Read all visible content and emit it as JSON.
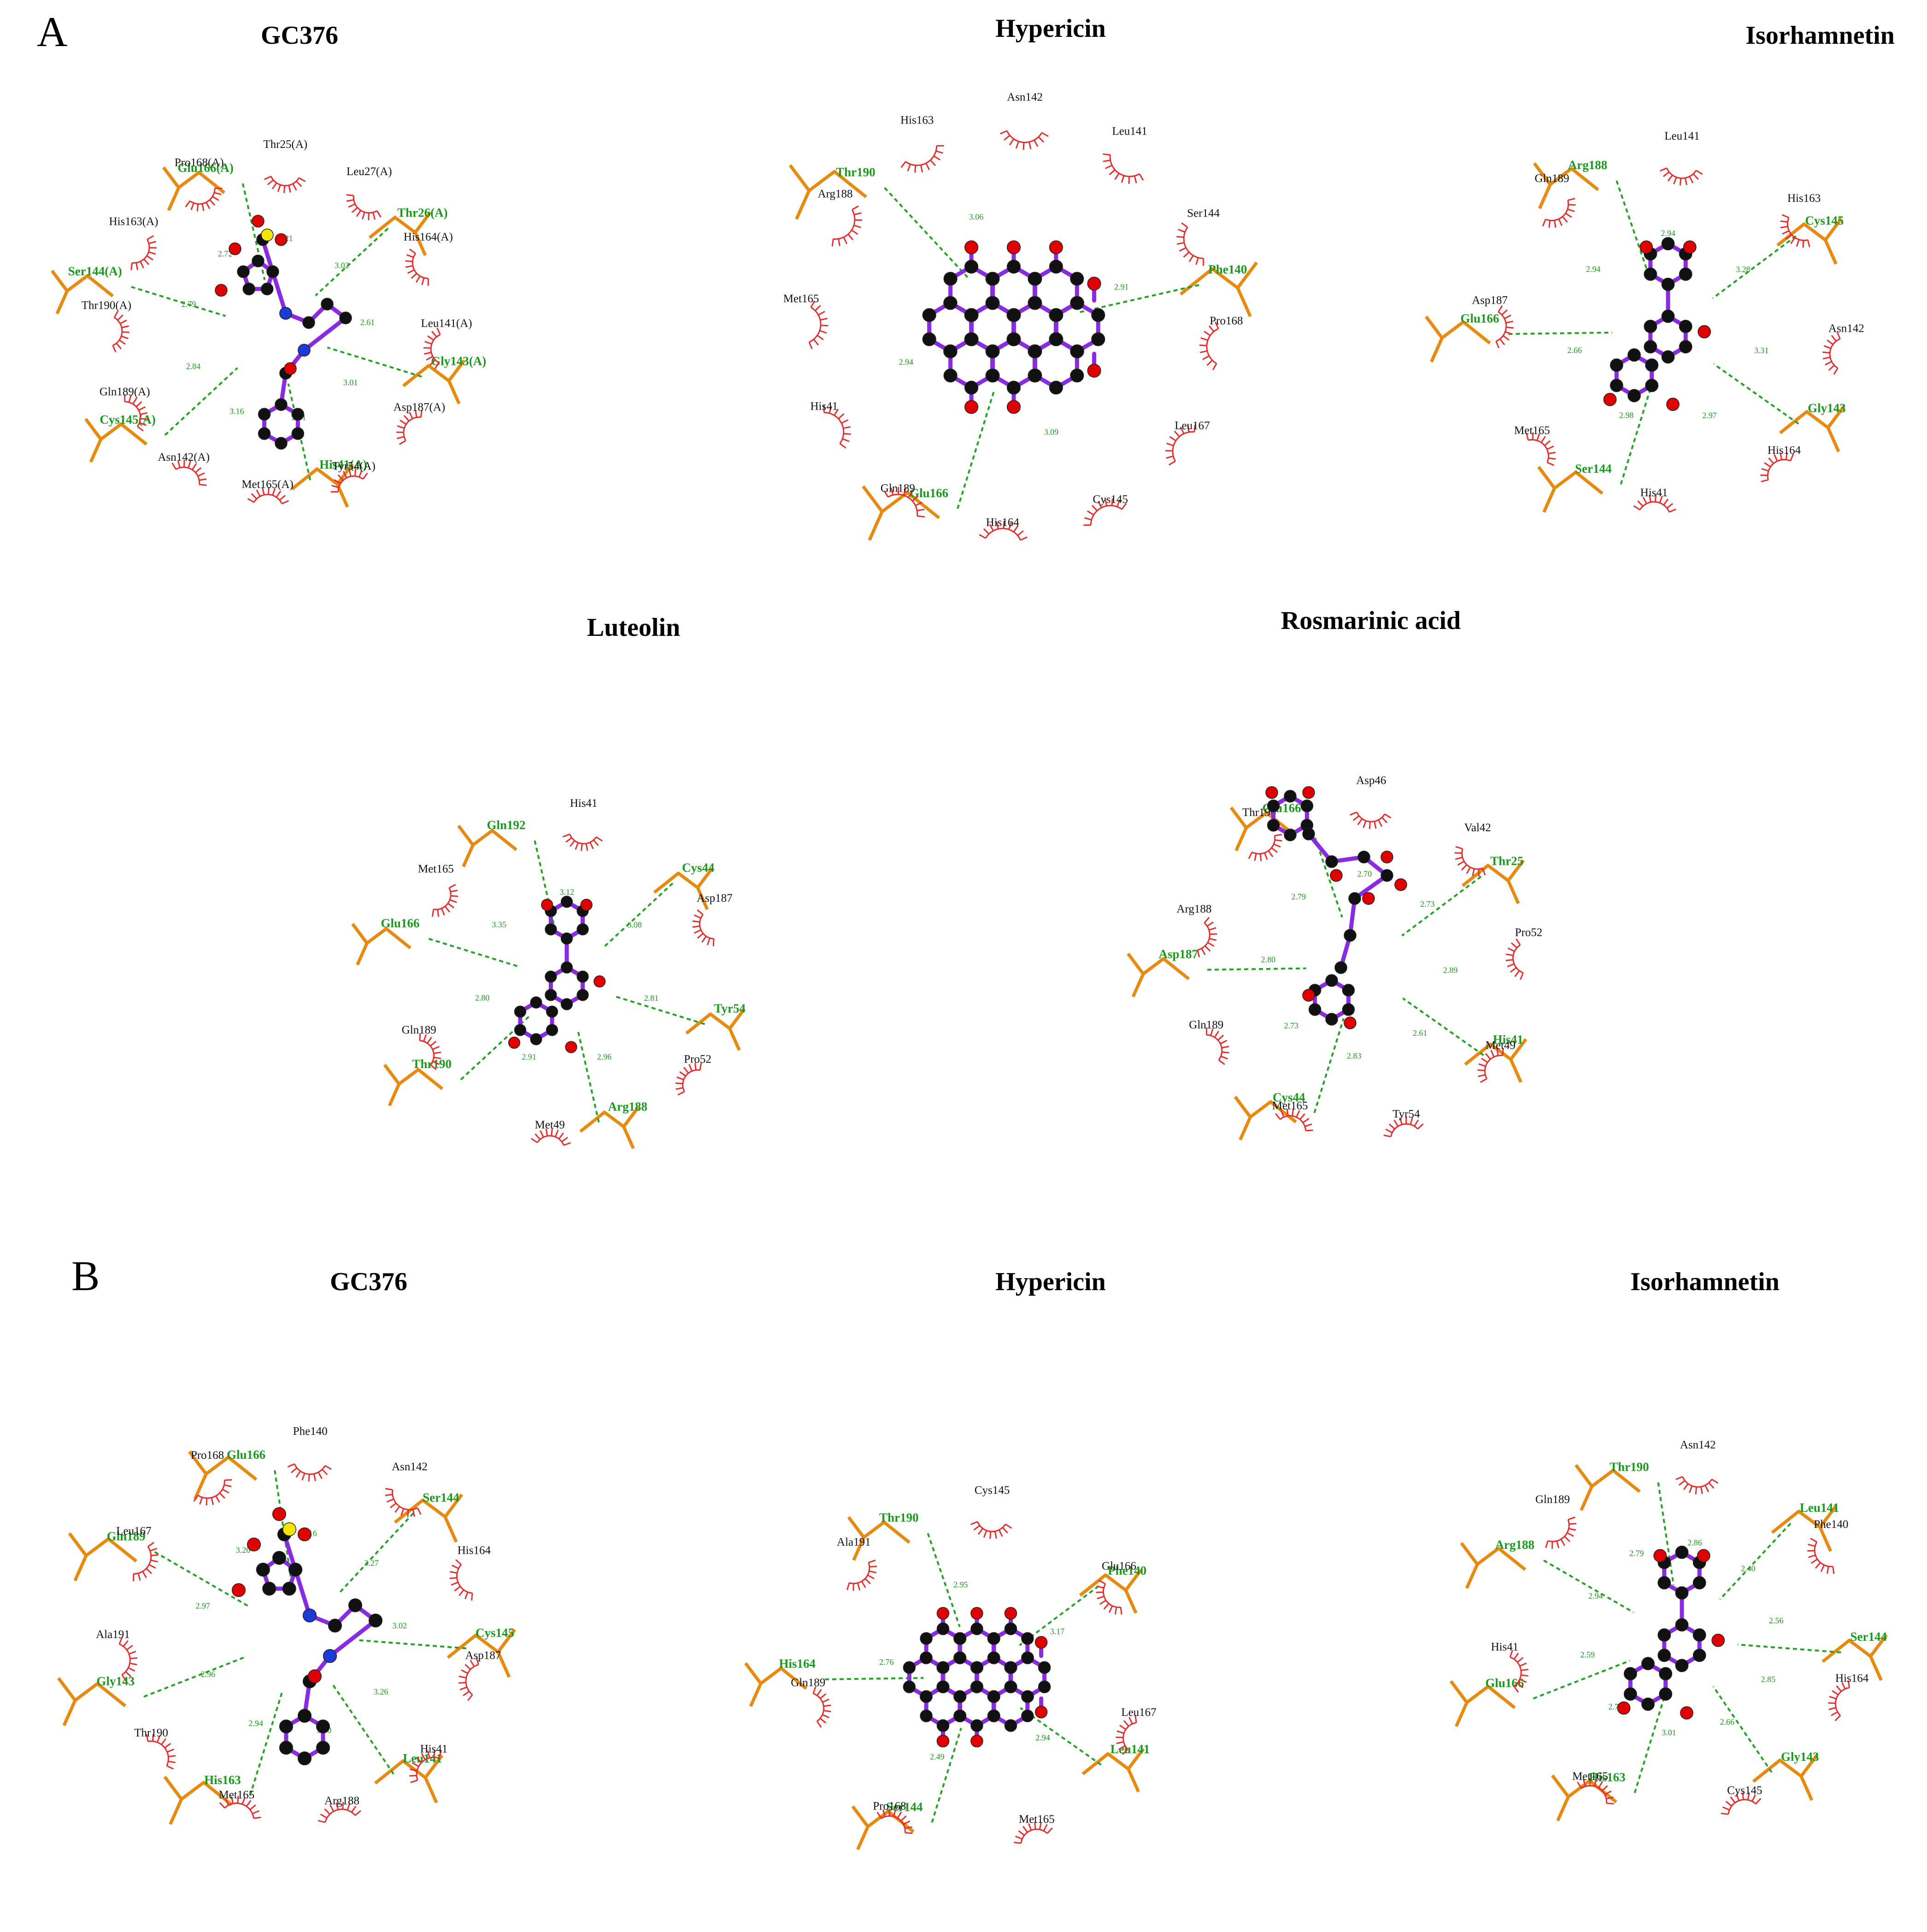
{
  "sections": [
    "A",
    "B"
  ],
  "panels": [
    {
      "title": "GC376",
      "green": [
        "Thr26(A)",
        "Gly143(A)",
        "His41(A)",
        "Cys145(A)",
        "Ser144(A)",
        "Glu166(A)"
      ],
      "black": [
        "Thr25(A)",
        "Leu27(A)",
        "His164(A)",
        "Leu141(A)",
        "Asp187(A)",
        "Tyr54(A)",
        "Met165(A)",
        "Asn142(A)",
        "Gln189(A)",
        "Thr190(A)",
        "His163(A)",
        "Pro168(A)"
      ],
      "dists": [
        "3.02",
        "2.61",
        "3.01",
        "2.81",
        "3.16",
        "2.84",
        "2.79",
        "2.72",
        "3.21"
      ]
    },
    {
      "title": "Hypericin",
      "green": [
        "Phe140",
        "Glu166",
        "Thr190"
      ],
      "black": [
        "Asn142",
        "Leu141",
        "Ser144",
        "Pro168",
        "Leu167",
        "Cys145",
        "His164",
        "Gln189",
        "His41",
        "Met165",
        "Arg188",
        "His163"
      ],
      "dists": [
        "2.91",
        "3.09",
        "2.94",
        "3.06"
      ]
    },
    {
      "title": "Isorhamnetin",
      "green": [
        "Cys145",
        "Gly143",
        "Ser144",
        "Glu166",
        "Arg188"
      ],
      "black": [
        "Leu141",
        "His163",
        "Asn142",
        "His164",
        "His41",
        "Met165",
        "Asp187",
        "Gln189"
      ],
      "dists": [
        "3.28",
        "3.31",
        "2.97",
        "2.98",
        "2.66",
        "2.94",
        "2.94"
      ]
    },
    {
      "title": "Luteolin",
      "green": [
        "Cys44",
        "Tyr54",
        "Arg188",
        "Thr190",
        "Glu166",
        "Gln192"
      ],
      "black": [
        "His41",
        "Asp187",
        "Pro52",
        "Met49",
        "Gln189",
        "Met165"
      ],
      "dists": [
        "3.08",
        "2.81",
        "2.96",
        "2.91",
        "2.80",
        "3.35",
        "3.12"
      ]
    },
    {
      "title": "Rosmarinic acid",
      "green": [
        "Thr25",
        "His41",
        "Cys44",
        "Asp187",
        "Glu166"
      ],
      "black": [
        "Asp46",
        "Val42",
        "Pro52",
        "Met49",
        "Tyr54",
        "Met165",
        "Gln189",
        "Arg188",
        "Thr190"
      ],
      "dists": [
        "2.73",
        "2.89",
        "2.61",
        "2.83",
        "2.73",
        "2.80",
        "2.79",
        "2.70"
      ]
    },
    {
      "title": "GC376",
      "green": [
        "Ser144",
        "Cys145",
        "Leu141",
        "His163",
        "Gly143",
        "Gln189",
        "Glu166"
      ],
      "black": [
        "Phe140",
        "Asn142",
        "His164",
        "Asp187",
        "His41",
        "Arg188",
        "Met165",
        "Thr190",
        "Ala191",
        "Leu167",
        "Pro168"
      ],
      "dists": [
        "3.27",
        "3.02",
        "3.26",
        "3.30",
        "2.94",
        "2.96",
        "2.97",
        "3.20",
        "3.16"
      ]
    },
    {
      "title": "Hypericin",
      "green": [
        "Phe140",
        "Leu141",
        "Ser144",
        "His164",
        "Thr190"
      ],
      "black": [
        "Cys145",
        "Glu166",
        "Leu167",
        "Met165",
        "Pro168",
        "Gln189",
        "Ala191"
      ],
      "dists": [
        "3.17",
        "2.94",
        "2.49",
        "2.76",
        "2.95"
      ]
    },
    {
      "title": "Isorhamnetin",
      "green": [
        "Leu141",
        "Ser144",
        "Gly143",
        "His163",
        "Glu166",
        "Arg188",
        "Thr190"
      ],
      "black": [
        "Asn142",
        "Phe140",
        "His164",
        "Cys145",
        "Met165",
        "His41",
        "Gln189"
      ],
      "dists": [
        "2.40",
        "2.56",
        "2.85",
        "2.66",
        "3.01",
        "2.74",
        "2.59",
        "2.94",
        "2.79",
        "2.86"
      ]
    }
  ]
}
